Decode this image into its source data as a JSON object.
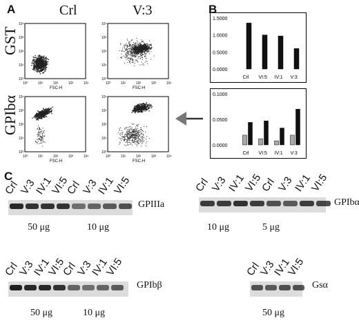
{
  "panels": {
    "a": "A",
    "b": "B",
    "c": "C"
  },
  "flow": {
    "col_headers": [
      "Crl",
      "V:3"
    ],
    "row_headers": [
      "GST",
      "GPIbα"
    ],
    "x_axis_label": "FSC-H",
    "tick_labels": [
      "10⁰",
      "10¹",
      "10²",
      "10³",
      "10⁴"
    ]
  },
  "chart_data": [
    {
      "type": "bar",
      "categories": [
        "Crl",
        "VI:5",
        "IV:1",
        "V:3"
      ],
      "series": [
        {
          "values": [
            1.35,
            1.0,
            0.97,
            0.6
          ]
        }
      ],
      "ylim": [
        0,
        1.5
      ],
      "y_ticks": [
        "0.0000",
        "0.5000",
        "1.0000",
        "1.5000"
      ],
      "colors": [
        "#111111"
      ]
    },
    {
      "type": "bar",
      "categories": [
        "Crl",
        "VI:5",
        "IV:1",
        "V:3"
      ],
      "series": [
        {
          "values": [
            0.019,
            0.012,
            0.008,
            0.019
          ]
        },
        {
          "values": [
            0.044,
            0.047,
            0.033,
            0.07
          ]
        }
      ],
      "ylim": [
        0,
        0.1
      ],
      "y_ticks": [
        "0.0000",
        "0.0500",
        "0.1000"
      ],
      "colors": [
        "#aaaaaa",
        "#111111"
      ]
    }
  ],
  "blots": [
    {
      "protein": "GPIIIa",
      "lanes": [
        "Crl",
        "V:3",
        "IV:1",
        "VI:5",
        "Crl",
        "V:3",
        "IV:1",
        "VI:5"
      ],
      "amounts": [
        "50 μg",
        "10 μg"
      ]
    },
    {
      "protein": "GPIbα",
      "lanes": [
        "Crl",
        "V:3",
        "IV:1",
        "VI:5",
        "Crl",
        "V:3",
        "IV:1",
        "VI:5"
      ],
      "amounts": [
        "10 μg",
        "5 μg"
      ]
    },
    {
      "protein": "GPIbβ",
      "lanes": [
        "Crl",
        "V:3",
        "IV:1",
        "VI:5",
        "Crl",
        "V:3",
        "IV:1",
        "VI:5"
      ],
      "amounts": [
        "50 μg",
        "10 μg"
      ]
    },
    {
      "protein": "Gsα",
      "lanes": [
        "Crl",
        "V:3",
        "IV:1",
        "VI:5"
      ],
      "amounts": [
        "50 μg"
      ]
    }
  ]
}
